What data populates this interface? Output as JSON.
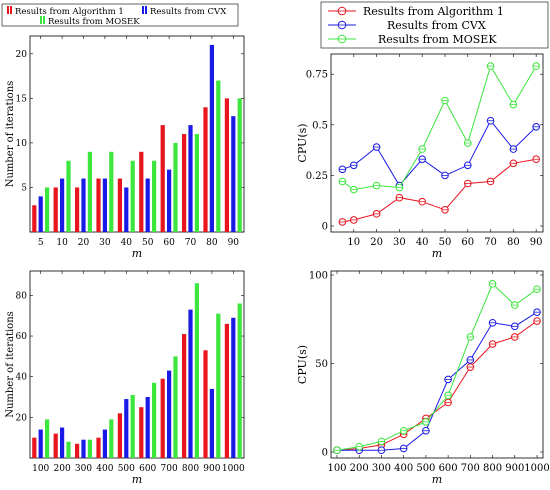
{
  "chart_data": [
    {
      "type": "bar",
      "panel": "top-left",
      "xlabel": "m",
      "ylabel": "Number of iterations",
      "categories": [
        "5",
        "10",
        "20",
        "30",
        "40",
        "50",
        "60",
        "70",
        "80",
        "90"
      ],
      "ylim": [
        0,
        22
      ],
      "yticks": [
        0,
        5,
        10,
        15,
        20
      ],
      "ytick_labels": [
        "",
        "5",
        "10",
        "15",
        "20"
      ],
      "legend_position": "top (above plot)",
      "series": [
        {
          "name": "Results from Algorithm 1",
          "color": "#e8141e",
          "values": [
            3,
            5,
            5,
            6,
            6,
            9,
            12,
            11,
            14,
            15
          ]
        },
        {
          "name": "Results from CVX",
          "color": "#1a1ae6",
          "values": [
            4,
            6,
            6,
            6,
            5,
            6,
            7,
            12,
            21,
            13
          ]
        },
        {
          "name": "Results from MOSEK",
          "color": "#3ce63c",
          "values": [
            5,
            8,
            9,
            9,
            8,
            8,
            10,
            11,
            17,
            15
          ]
        }
      ]
    },
    {
      "type": "line",
      "panel": "top-right",
      "xlabel": "m",
      "ylabel": "CPU(s)",
      "x": [
        5,
        10,
        20,
        30,
        40,
        50,
        60,
        70,
        80,
        90
      ],
      "xlim": [
        0,
        93
      ],
      "xticks": [
        10,
        20,
        30,
        40,
        50,
        60,
        70,
        80,
        90
      ],
      "ylim": [
        0,
        0.83
      ],
      "yticks": [
        0,
        0.25,
        0.5,
        0.75
      ],
      "ytick_labels": [
        "0",
        "0.25",
        "0.5",
        "0.75"
      ],
      "legend_position": "top-right (above plot)",
      "series": [
        {
          "name": "Results from Algorithm 1",
          "color": "#e8141e",
          "values": [
            0.02,
            0.03,
            0.06,
            0.14,
            0.12,
            0.08,
            0.21,
            0.22,
            0.31,
            0.33
          ]
        },
        {
          "name": "Results from CVX",
          "color": "#1a1ae6",
          "values": [
            0.28,
            0.3,
            0.39,
            0.2,
            0.33,
            0.25,
            0.3,
            0.52,
            0.38,
            0.49
          ]
        },
        {
          "name": "Results from MOSEK",
          "color": "#3ce63c",
          "values": [
            0.22,
            0.18,
            0.2,
            0.19,
            0.38,
            0.62,
            0.41,
            0.79,
            0.6,
            0.79
          ]
        }
      ]
    },
    {
      "type": "bar",
      "panel": "bottom-left",
      "xlabel": "m",
      "ylabel": "Number of iterations",
      "categories": [
        "100",
        "200",
        "300",
        "400",
        "500",
        "600",
        "700",
        "800",
        "900",
        "1000"
      ],
      "ylim": [
        0,
        92
      ],
      "yticks": [
        0,
        20,
        40,
        60,
        80
      ],
      "ytick_labels": [
        "",
        "20",
        "40",
        "60",
        "80"
      ],
      "series": [
        {
          "name": "Results from Algorithm 1",
          "color": "#e8141e",
          "values": [
            10,
            12,
            7,
            10,
            22,
            25,
            39,
            61,
            53,
            66
          ]
        },
        {
          "name": "Results from CVX",
          "color": "#1a1ae6",
          "values": [
            14,
            15,
            9,
            14,
            29,
            30,
            43,
            73,
            34,
            69
          ]
        },
        {
          "name": "Results from MOSEK",
          "color": "#3ce63c",
          "values": [
            19,
            8,
            9,
            19,
            31,
            37,
            50,
            86,
            71,
            76
          ]
        }
      ]
    },
    {
      "type": "line",
      "panel": "bottom-right",
      "xlabel": "m",
      "ylabel": "CPU(s)",
      "x": [
        100,
        200,
        300,
        400,
        500,
        600,
        700,
        800,
        900,
        1000
      ],
      "xlim": [
        100,
        1000
      ],
      "xticks": [
        100,
        200,
        300,
        400,
        500,
        600,
        700,
        800,
        900,
        1000
      ],
      "ylim": [
        0,
        100
      ],
      "yticks": [
        0,
        50,
        100
      ],
      "ytick_labels": [
        "0",
        "50",
        "100"
      ],
      "series": [
        {
          "name": "Results from Algorithm 1",
          "color": "#e8141e",
          "values": [
            1,
            2,
            4,
            10,
            19,
            28,
            48,
            61,
            65,
            74
          ]
        },
        {
          "name": "Results from CVX",
          "color": "#1a1ae6",
          "values": [
            1,
            1,
            1,
            2,
            12,
            41,
            52,
            73,
            71,
            79
          ]
        },
        {
          "name": "Results from MOSEK",
          "color": "#3ce63c",
          "values": [
            1,
            3,
            6,
            12,
            17,
            32,
            65,
            95,
            83,
            92
          ]
        }
      ]
    }
  ],
  "legends": {
    "bar_legend": [
      {
        "label": "Results from Algorithm 1",
        "color": "#e8141e"
      },
      {
        "label": "Results from CVX",
        "color": "#1a1ae6"
      },
      {
        "label": "Results from MOSEK",
        "color": "#3ce63c"
      }
    ],
    "line_legend": [
      {
        "label": "Results from Algorithm 1",
        "color": "#e8141e"
      },
      {
        "label": "Results from CVX",
        "color": "#1a1ae6"
      },
      {
        "label": "Results from MOSEK",
        "color": "#3ce63c"
      }
    ]
  }
}
